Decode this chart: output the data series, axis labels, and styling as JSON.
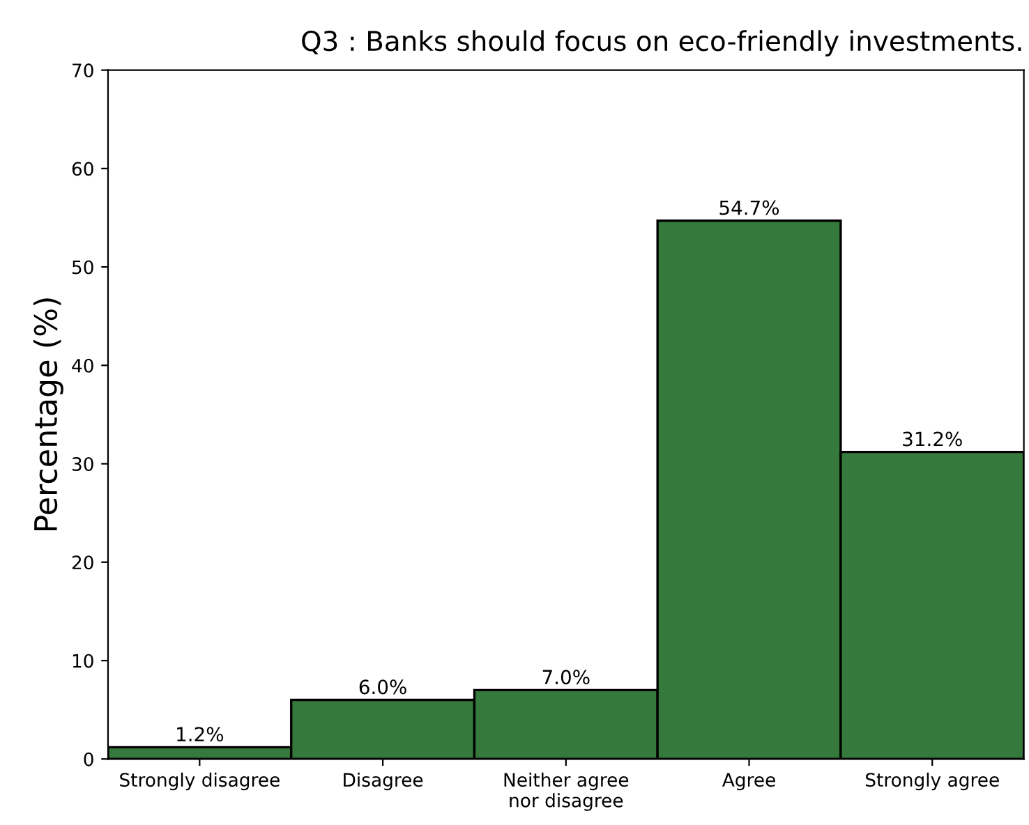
{
  "chart_data": {
    "type": "bar",
    "title": "Q3 : Banks should focus on eco-friendly investments.",
    "ylabel": "Percentage (%)",
    "categories": [
      "Strongly disagree",
      "Disagree",
      "Neither agree\nnor disagree",
      "Agree",
      "Strongly agree"
    ],
    "values": [
      1.2,
      6.0,
      7.0,
      54.7,
      31.2
    ],
    "value_labels": [
      "1.2%",
      "6.0%",
      "7.0%",
      "54.7%",
      "31.2%"
    ],
    "color": "#357a3c",
    "ylim": [
      0,
      70
    ],
    "yticks": [
      0,
      10,
      20,
      30,
      40,
      50,
      60,
      70
    ],
    "grid": false,
    "legend": false
  }
}
